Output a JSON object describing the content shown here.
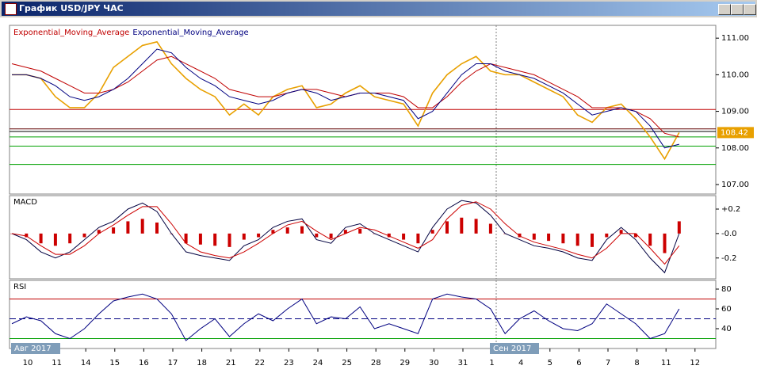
{
  "window_title": "График USD/JPY ЧАС",
  "x_labels": [
    "10",
    "11",
    "14",
    "15",
    "16",
    "17",
    "18",
    "21",
    "22",
    "23",
    "24",
    "25",
    "28",
    "29",
    "30",
    "31",
    "1",
    "4",
    "5",
    "6",
    "7",
    "8",
    "11",
    "12"
  ],
  "month_labels": [
    "Авг 2017",
    "Сен 2017"
  ],
  "chart_data": [
    {
      "type": "line",
      "ylim": [
        106.74,
        111.35
      ],
      "yticks": [
        {
          "value": 111,
          "label": "111.00"
        },
        {
          "value": 110,
          "label": "110.00"
        },
        {
          "value": 109,
          "label": "109.00"
        },
        {
          "value": 108,
          "label": "108.00"
        },
        {
          "value": 107,
          "label": "107.00"
        }
      ],
      "series": [
        {
          "color": "#e8a000",
          "values": [
            110.0,
            110.0,
            109.9,
            109.4,
            109.1,
            109.1,
            109.5,
            110.2,
            110.5,
            110.8,
            110.9,
            110.3,
            109.9,
            109.6,
            109.4,
            108.9,
            109.2,
            108.9,
            109.4,
            109.6,
            109.7,
            109.1,
            109.2,
            109.5,
            109.7,
            109.4,
            109.3,
            109.2,
            108.6,
            109.5,
            110.0,
            110.3,
            110.5,
            110.1,
            110.0,
            110.0,
            109.8,
            109.6,
            109.4,
            108.9,
            108.7,
            109.1,
            109.2,
            108.8,
            108.3,
            107.7,
            108.42
          ]
        },
        {
          "name": "Exponential_Moving_Average",
          "color": "#c00000",
          "values": [
            110.3,
            110.2,
            110.1,
            109.9,
            109.7,
            109.5,
            109.5,
            109.6,
            109.8,
            110.1,
            110.4,
            110.5,
            110.3,
            110.1,
            109.9,
            109.6,
            109.5,
            109.4,
            109.4,
            109.5,
            109.6,
            109.6,
            109.5,
            109.4,
            109.5,
            109.5,
            109.5,
            109.4,
            109.1,
            109.1,
            109.4,
            109.8,
            110.1,
            110.3,
            110.2,
            110.1,
            110.0,
            109.8,
            109.6,
            109.4,
            109.1,
            109.1,
            109.1,
            109.0,
            108.8,
            108.4,
            108.3
          ]
        },
        {
          "name": "Exponential_Moving_Average",
          "color": "#000080",
          "values": [
            110.0,
            110.0,
            109.9,
            109.7,
            109.4,
            109.3,
            109.4,
            109.6,
            109.9,
            110.3,
            110.7,
            110.6,
            110.2,
            109.9,
            109.7,
            109.4,
            109.3,
            109.2,
            109.3,
            109.5,
            109.6,
            109.5,
            109.3,
            109.4,
            109.5,
            109.5,
            109.4,
            109.3,
            108.8,
            109.0,
            109.5,
            110.0,
            110.3,
            110.3,
            110.1,
            110.0,
            109.9,
            109.7,
            109.5,
            109.2,
            108.9,
            109.0,
            109.1,
            109.0,
            108.6,
            108.0,
            108.1
          ]
        }
      ],
      "hlines": [
        {
          "value": 109.05,
          "color": "#c00000"
        },
        {
          "value": 108.52,
          "color": "#600000"
        },
        {
          "value": 108.45,
          "color": "#000000"
        },
        {
          "value": 108.3,
          "color": "#00a000"
        },
        {
          "value": 108.05,
          "color": "#00a000"
        },
        {
          "value": 107.55,
          "color": "#00a000"
        }
      ]
    },
    {
      "type": "macd",
      "title": "MACD",
      "ylim": [
        -0.37,
        0.31
      ],
      "yticks": [
        {
          "value": 0.2,
          "label": "+0.2"
        },
        {
          "value": 0,
          "label": "-0.0"
        },
        {
          "value": -0.2,
          "label": "-0.2"
        }
      ],
      "histogram": {
        "color": "#cc0000",
        "values": [
          0,
          -0.03,
          -0.08,
          -0.1,
          -0.08,
          -0.03,
          0.03,
          0.05,
          0.1,
          0.12,
          0.09,
          0,
          -0.08,
          -0.09,
          -0.1,
          -0.11,
          -0.05,
          -0.03,
          0.03,
          0.05,
          0.06,
          -0.03,
          -0.04,
          0.03,
          0.04,
          0,
          -0.03,
          -0.05,
          -0.08,
          0.03,
          0.1,
          0.13,
          0.12,
          0.08,
          0,
          -0.03,
          -0.05,
          -0.06,
          -0.08,
          -0.1,
          -0.11,
          -0.03,
          0.03,
          -0.03,
          -0.1,
          -0.16,
          0.1
        ]
      },
      "series": [
        {
          "color": "#000040",
          "values": [
            0.0,
            -0.05,
            -0.15,
            -0.2,
            -0.15,
            -0.05,
            0.05,
            0.1,
            0.2,
            0.25,
            0.18,
            0.0,
            -0.15,
            -0.18,
            -0.2,
            -0.22,
            -0.1,
            -0.05,
            0.05,
            0.1,
            0.12,
            -0.05,
            -0.08,
            0.05,
            0.08,
            0.0,
            -0.05,
            -0.1,
            -0.15,
            0.05,
            0.2,
            0.27,
            0.25,
            0.15,
            0.0,
            -0.05,
            -0.1,
            -0.12,
            -0.15,
            -0.2,
            -0.22,
            -0.05,
            0.05,
            -0.05,
            -0.2,
            -0.32,
            0.0
          ]
        },
        {
          "color": "#cc0000",
          "values": [
            0.0,
            -0.02,
            -0.1,
            -0.17,
            -0.17,
            -0.1,
            0.0,
            0.07,
            0.15,
            0.22,
            0.22,
            0.08,
            -0.08,
            -0.15,
            -0.18,
            -0.2,
            -0.15,
            -0.08,
            0.0,
            0.07,
            0.1,
            0.02,
            -0.05,
            0.0,
            0.05,
            0.03,
            -0.02,
            -0.07,
            -0.12,
            -0.05,
            0.12,
            0.23,
            0.26,
            0.2,
            0.08,
            -0.02,
            -0.07,
            -0.1,
            -0.13,
            -0.17,
            -0.2,
            -0.12,
            0.0,
            0.0,
            -0.12,
            -0.25,
            -0.1
          ]
        }
      ]
    },
    {
      "type": "line",
      "title": "RSI",
      "ylim": [
        20,
        88.8
      ],
      "yticks": [
        80,
        60,
        40
      ],
      "series": [
        {
          "color": "#000080",
          "values": [
            45,
            52,
            48,
            35,
            30,
            40,
            55,
            68,
            72,
            75,
            70,
            55,
            28,
            40,
            50,
            32,
            45,
            55,
            48,
            60,
            70,
            45,
            52,
            50,
            62,
            40,
            45,
            40,
            35,
            70,
            75,
            72,
            70,
            60,
            35,
            50,
            58,
            48,
            40,
            38,
            45,
            65,
            55,
            45,
            30,
            35,
            60
          ]
        }
      ],
      "hlines": [
        {
          "value": 70,
          "color": "#c00000"
        },
        {
          "value": 50,
          "color": "#000080",
          "dashed": true
        },
        {
          "value": 30,
          "color": "#00a000"
        }
      ]
    }
  ]
}
